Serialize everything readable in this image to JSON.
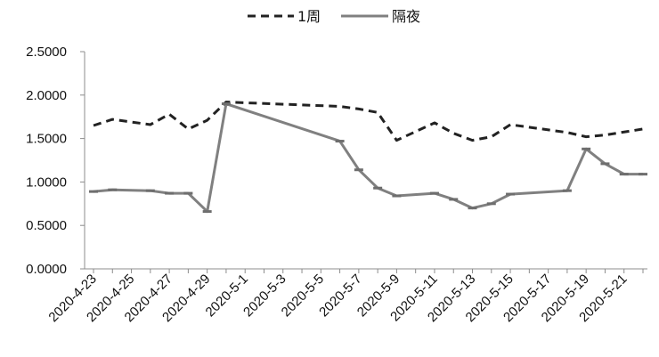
{
  "chart_data": {
    "type": "line",
    "title": "",
    "xlabel": "",
    "ylabel": "",
    "ylim": [
      0,
      2.5
    ],
    "y_ticks": [
      "0.0000",
      "0.5000",
      "1.0000",
      "1.5000",
      "2.0000",
      "2.5000"
    ],
    "x_tick_labels": [
      "2020-4-23",
      "2020-4-25",
      "2020-4-27",
      "2020-4-29",
      "2020-5-1",
      "2020-5-3",
      "2020-5-5",
      "2020-5-7",
      "2020-5-9",
      "2020-5-11",
      "2020-5-13",
      "2020-5-15",
      "2020-5-17",
      "2020-5-19",
      "2020-5-21"
    ],
    "x_range": [
      "2020-04-23",
      "2020-05-22"
    ],
    "grid": false,
    "legend_position": "top-center",
    "series": [
      {
        "name": "1周",
        "style": "dashed",
        "color": "#222222",
        "points": [
          {
            "x": "2020-04-23",
            "y": 1.65
          },
          {
            "x": "2020-04-24",
            "y": 1.72
          },
          {
            "x": "2020-04-26",
            "y": 1.66
          },
          {
            "x": "2020-04-27",
            "y": 1.78
          },
          {
            "x": "2020-04-28",
            "y": 1.61
          },
          {
            "x": "2020-04-29",
            "y": 1.71
          },
          {
            "x": "2020-04-30",
            "y": 1.92
          },
          {
            "x": "2020-05-06",
            "y": 1.87
          },
          {
            "x": "2020-05-07",
            "y": 1.84
          },
          {
            "x": "2020-05-08",
            "y": 1.8
          },
          {
            "x": "2020-05-09",
            "y": 1.48
          },
          {
            "x": "2020-05-11",
            "y": 1.68
          },
          {
            "x": "2020-05-12",
            "y": 1.56
          },
          {
            "x": "2020-05-13",
            "y": 1.48
          },
          {
            "x": "2020-05-14",
            "y": 1.52
          },
          {
            "x": "2020-05-15",
            "y": 1.66
          },
          {
            "x": "2020-05-18",
            "y": 1.57
          },
          {
            "x": "2020-05-19",
            "y": 1.52
          },
          {
            "x": "2020-05-20",
            "y": 1.54
          },
          {
            "x": "2020-05-22",
            "y": 1.61
          }
        ]
      },
      {
        "name": "隔夜",
        "style": "solid",
        "color": "#808080",
        "points": [
          {
            "x": "2020-04-23",
            "y": 0.89
          },
          {
            "x": "2020-04-24",
            "y": 0.91
          },
          {
            "x": "2020-04-26",
            "y": 0.9
          },
          {
            "x": "2020-04-27",
            "y": 0.87
          },
          {
            "x": "2020-04-28",
            "y": 0.87
          },
          {
            "x": "2020-04-29",
            "y": 0.66
          },
          {
            "x": "2020-04-30",
            "y": 1.9
          },
          {
            "x": "2020-05-06",
            "y": 1.47
          },
          {
            "x": "2020-05-07",
            "y": 1.14
          },
          {
            "x": "2020-05-08",
            "y": 0.93
          },
          {
            "x": "2020-05-09",
            "y": 0.84
          },
          {
            "x": "2020-05-11",
            "y": 0.87
          },
          {
            "x": "2020-05-12",
            "y": 0.8
          },
          {
            "x": "2020-05-13",
            "y": 0.7
          },
          {
            "x": "2020-05-14",
            "y": 0.75
          },
          {
            "x": "2020-05-15",
            "y": 0.86
          },
          {
            "x": "2020-05-18",
            "y": 0.9
          },
          {
            "x": "2020-05-19",
            "y": 1.38
          },
          {
            "x": "2020-05-20",
            "y": 1.21
          },
          {
            "x": "2020-05-21",
            "y": 1.09
          },
          {
            "x": "2020-05-22",
            "y": 1.09
          }
        ]
      }
    ]
  }
}
